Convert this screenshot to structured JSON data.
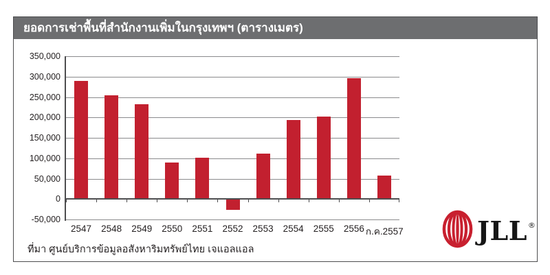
{
  "panel": {
    "title": "ยอดการเช่าพื้นที่สำนักงานเพิ่มในกรุงเทพฯ (ตารางเมตร)",
    "title_bar_color": "#6d6e70",
    "border_color": "#4d4d4f",
    "source_note": "ที่มา ศูนย์บริการข้อมูลอสังหาริมทรัพย์ไทย เจแอลแอล"
  },
  "chart_data": {
    "type": "bar",
    "title": "ยอดการเช่าพื้นที่สำนักงานเพิ่มในกรุงเทพฯ (ตารางเมตร)",
    "xlabel": "",
    "ylabel": "",
    "categories": [
      "2547",
      "2548",
      "2549",
      "2550",
      "2551",
      "2552",
      "2553",
      "2554",
      "2555",
      "2556",
      "ก.ค.2557"
    ],
    "values": [
      290000,
      254000,
      232000,
      89000,
      101000,
      -27000,
      112000,
      193000,
      202000,
      296000,
      58000
    ],
    "ylim": [
      -50000,
      350000
    ],
    "ytick_interval": 50000,
    "ytick_labels": [
      "350,000",
      "300,000",
      "250,000",
      "200,000",
      "150,000",
      "100,000",
      "50,000",
      "0",
      "-50,000"
    ],
    "grid": true,
    "legend": "none",
    "bar_color": "#c2202f",
    "gridline_color": "#8a8a8c",
    "axis_color": "#4d4d4f"
  },
  "logo": {
    "name": "jll-logo",
    "text": "JLL",
    "registered_mark": "®",
    "mark_color": "#c8202f",
    "text_color": "#161616"
  }
}
